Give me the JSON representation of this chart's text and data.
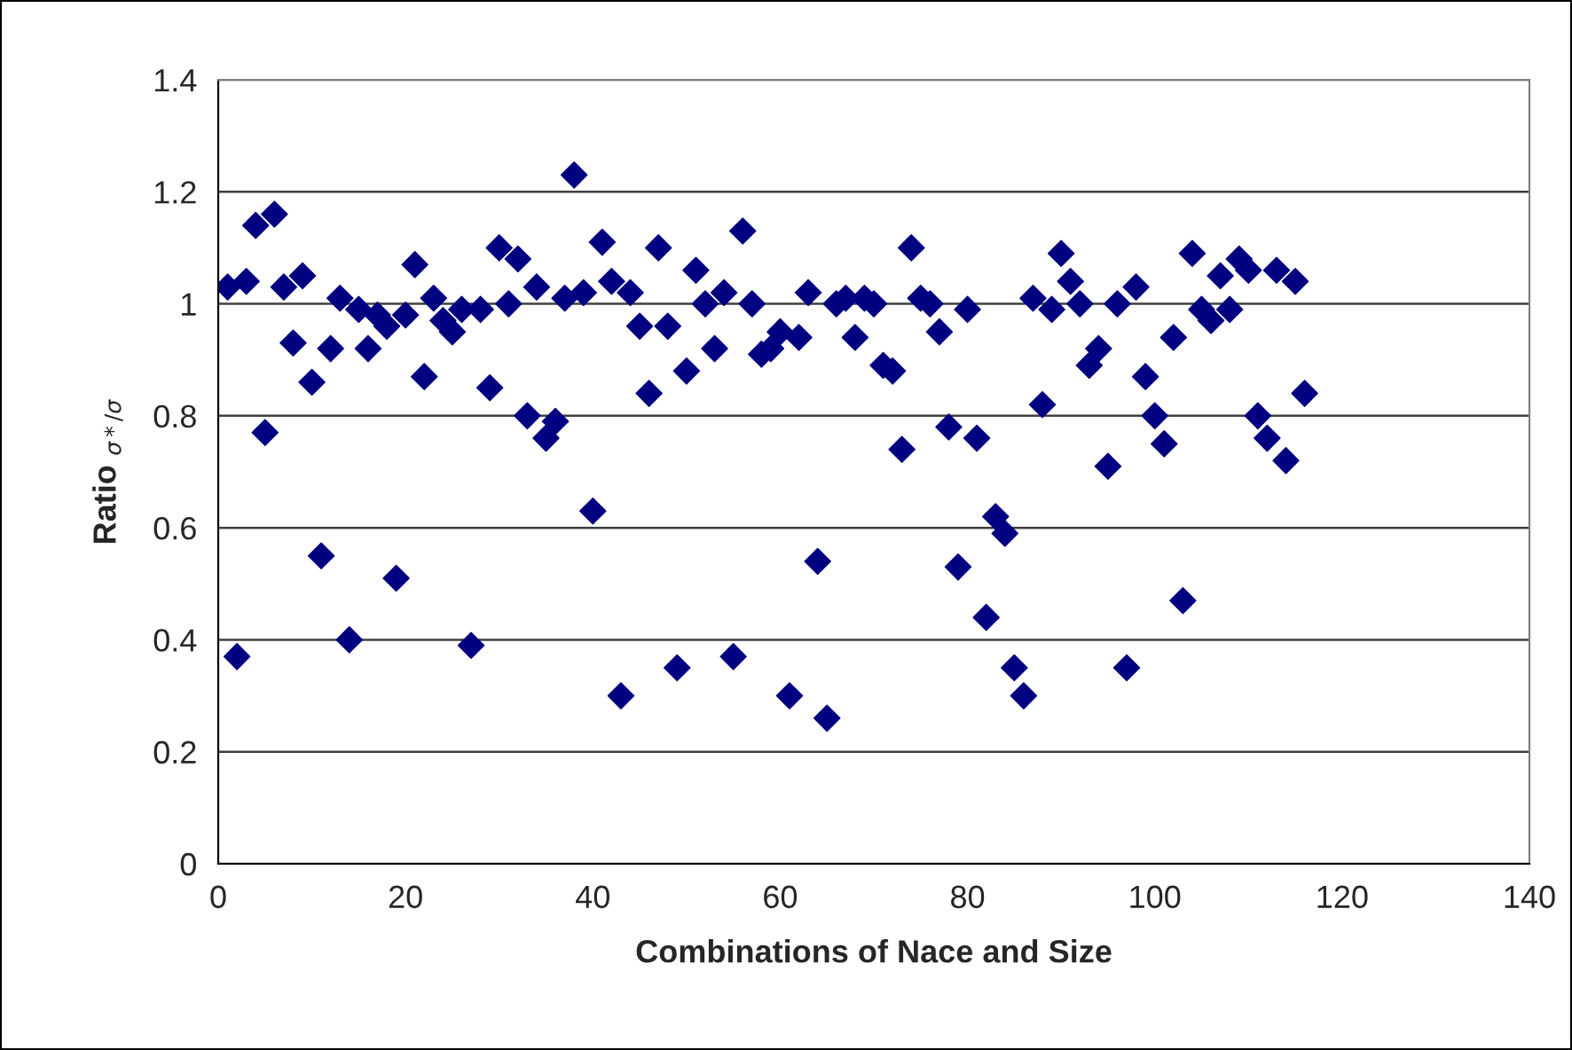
{
  "chart_data": {
    "type": "scatter",
    "xlabel": "Combinations of Nace and Size",
    "ylabel": "Ratio $_{σ*/σ}$",
    "x": [
      1,
      2,
      3,
      4,
      5,
      6,
      7,
      8,
      9,
      10,
      11,
      12,
      13,
      14,
      15,
      16,
      17,
      18,
      19,
      20,
      21,
      22,
      23,
      24,
      25,
      26,
      27,
      28,
      29,
      30,
      31,
      32,
      33,
      34,
      35,
      36,
      37,
      38,
      39,
      40,
      41,
      42,
      43,
      44,
      45,
      46,
      47,
      48,
      49,
      50,
      51,
      52,
      53,
      54,
      55,
      56,
      57,
      58,
      59,
      60,
      61,
      62,
      63,
      64,
      65,
      66,
      67,
      68,
      69,
      70,
      71,
      72,
      73,
      74,
      75,
      76,
      77,
      78,
      79,
      80,
      81,
      82,
      83,
      84,
      85,
      86,
      87,
      88,
      89,
      90,
      91,
      92,
      93,
      94,
      95,
      96,
      97,
      98,
      99,
      100,
      101,
      102,
      103,
      104,
      105,
      106,
      107,
      108,
      109,
      110,
      111,
      112,
      113,
      114,
      115,
      116
    ],
    "series": [
      {
        "color": "#000080",
        "values": [
          1.03,
          0.37,
          1.04,
          1.14,
          0.77,
          1.16,
          1.03,
          0.93,
          1.05,
          0.86,
          0.55,
          0.92,
          1.01,
          0.4,
          0.99,
          0.92,
          0.98,
          0.96,
          0.51,
          0.98,
          1.07,
          0.87,
          1.01,
          0.97,
          0.95,
          0.99,
          0.39,
          0.99,
          0.85,
          1.1,
          1.0,
          1.08,
          0.8,
          1.03,
          0.76,
          0.79,
          1.01,
          1.23,
          1.02,
          0.63,
          1.11,
          1.04,
          0.3,
          1.02,
          0.96,
          0.84,
          1.1,
          0.96,
          0.35,
          0.88,
          1.06,
          1.0,
          0.92,
          1.02,
          0.37,
          1.13,
          1.0,
          0.91,
          0.92,
          0.95,
          0.3,
          0.94,
          1.02,
          0.54,
          0.26,
          1.0,
          1.01,
          0.94,
          1.01,
          1.0,
          0.89,
          0.88,
          0.74,
          1.1,
          1.01,
          1.0,
          0.95,
          0.78,
          0.53,
          0.99,
          0.76,
          0.44,
          0.62,
          0.59,
          0.35,
          0.3,
          1.01,
          0.82,
          0.99,
          1.09,
          1.04,
          1.0,
          0.89,
          0.92,
          0.71,
          1.0,
          0.35,
          1.03,
          0.87,
          0.8,
          0.75,
          0.94,
          0.47,
          1.09,
          0.99,
          0.97,
          1.05,
          0.99,
          1.08,
          1.06,
          0.8,
          0.76,
          1.06,
          0.72,
          1.04,
          0.84
        ]
      }
    ],
    "xlim": [
      0,
      140
    ],
    "xticks": [
      0,
      20,
      40,
      60,
      80,
      100,
      120,
      140
    ],
    "ylim": [
      0,
      1.4
    ],
    "yticks": [
      0,
      0.2,
      0.4,
      0.6,
      0.8,
      1,
      1.2,
      1.4
    ],
    "grid": "y",
    "marker": "diamond",
    "legend": false
  }
}
